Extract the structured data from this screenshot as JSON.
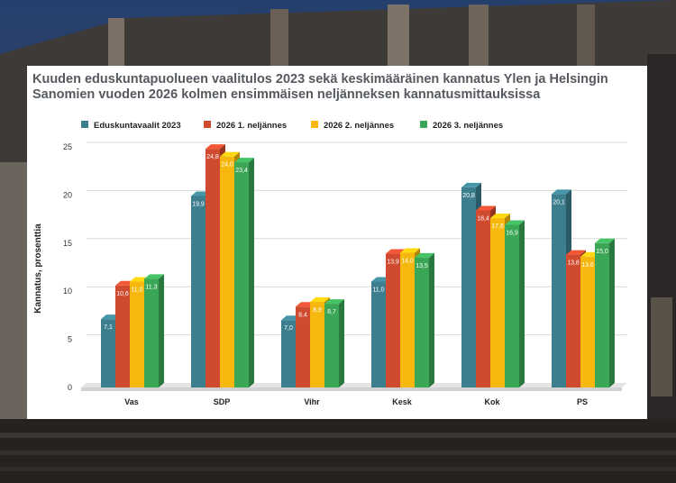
{
  "chart_data": {
    "type": "bar",
    "title": "Kuuden eduskuntapuolueen vaalitulos 2023 sekä keskimääräinen kannatus Ylen ja Helsingin Sanomien  vuoden 2026 kolmen ensimmäisen neljänneksen kannatusmittauksissa",
    "xlabel": "",
    "ylabel": "Kannatus, prosenttia",
    "ylim": [
      0,
      25
    ],
    "yticks": [
      0,
      5,
      10,
      15,
      20,
      25
    ],
    "grid": true,
    "legend": "top",
    "categories": [
      "Vas",
      "SDP",
      "Vihr",
      "Kesk",
      "Kok",
      "PS"
    ],
    "series": [
      {
        "name": "Eduskuntavaalit 2023",
        "color": "#3c7e8e",
        "values": [
          7.1,
          19.9,
          7.0,
          11.0,
          20.8,
          20.1
        ],
        "labels": [
          "7,1",
          "19,9",
          "7,0",
          "11,0",
          "20,8",
          "20,1"
        ]
      },
      {
        "name": "2026 1. neljännes",
        "color": "#cf4a2e",
        "values": [
          10.6,
          24.8,
          8.4,
          13.9,
          18.4,
          13.8
        ],
        "labels": [
          "10,6",
          "24,8",
          "8,4",
          "13,9",
          "18,4",
          "13,8"
        ]
      },
      {
        "name": "2026 2. neljännes",
        "color": "#f6b80e",
        "values": [
          11.0,
          24.0,
          8.9,
          14.0,
          17.6,
          13.6
        ],
        "labels": [
          "11,0",
          "24,0",
          "8,9",
          "14,0",
          "17,6",
          "13,6"
        ]
      },
      {
        "name": "2026 3. neljännes",
        "color": "#3aa656",
        "values": [
          11.3,
          23.4,
          8.7,
          13.5,
          16.9,
          15.0
        ],
        "labels": [
          "11,3",
          "23,4",
          "8,7",
          "13,5",
          "16,9",
          "15,0"
        ]
      }
    ]
  }
}
